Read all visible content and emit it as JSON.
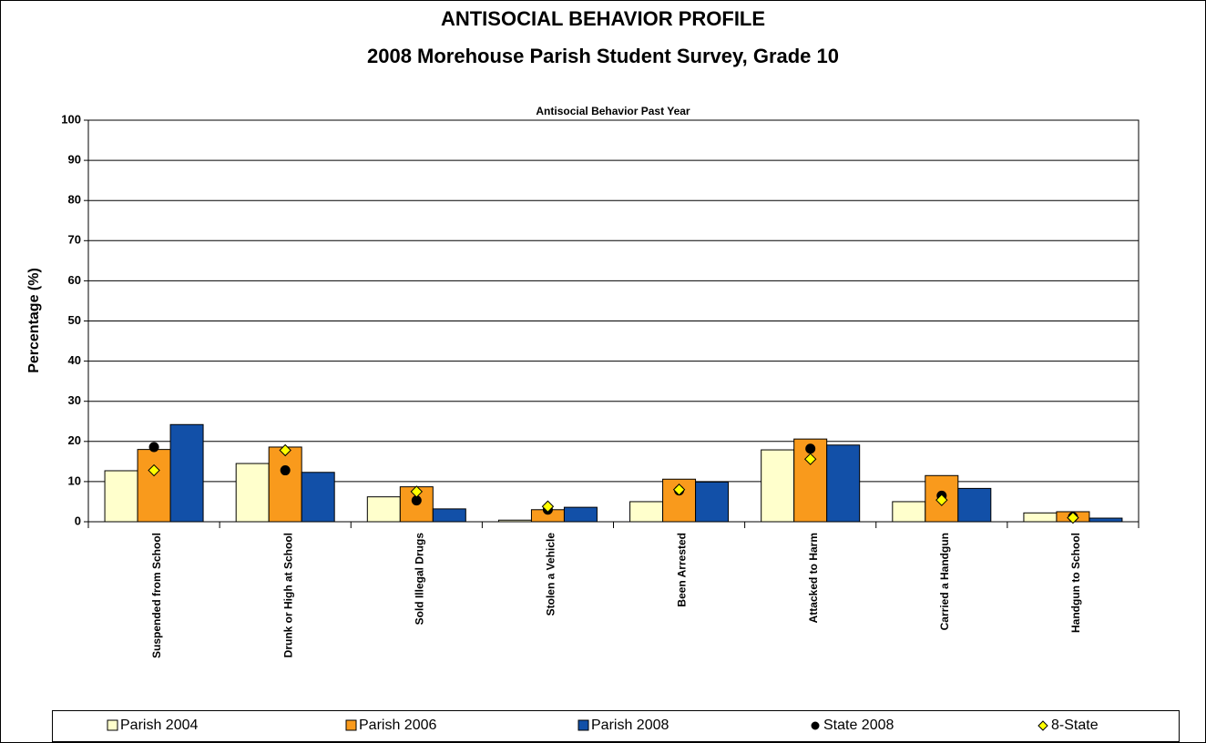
{
  "chart_data": {
    "type": "bar",
    "title": "ANTISOCIAL BEHAVIOR PROFILE",
    "subtitle": "2008 Morehouse Parish Student Survey, Grade 10",
    "plot_title": "Antisocial Behavior Past Year",
    "y_label": "Percentage (%)",
    "categories": [
      "Suspended from School",
      "Drunk or High at School",
      "Sold Illegal Drugs",
      "Stolen a Vehicle",
      "Been Arrested",
      "Attacked to Harm",
      "Carried a Handgun",
      "Handgun to School"
    ],
    "series": [
      {
        "name": "Parish 2004",
        "type": "bar",
        "color": "#ffffcc",
        "values": [
          12.7,
          14.5,
          6.2,
          0.4,
          5.0,
          17.9,
          5.0,
          2.2
        ]
      },
      {
        "name": "Parish 2006",
        "type": "bar",
        "color": "#f99a1c",
        "values": [
          18.0,
          18.6,
          8.7,
          3.0,
          10.6,
          20.6,
          11.5,
          2.5
        ]
      },
      {
        "name": "Parish 2008",
        "type": "bar",
        "color": "#1250a8",
        "values": [
          24.2,
          12.3,
          3.2,
          3.6,
          9.9,
          19.1,
          8.3,
          0.9
        ]
      },
      {
        "name": "State 2008",
        "type": "scatter",
        "marker": "circle",
        "color": "#000000",
        "values": [
          18.6,
          12.8,
          5.3,
          3.0,
          7.8,
          18.2,
          6.5,
          1.2
        ]
      },
      {
        "name": "8-State",
        "type": "scatter",
        "marker": "diamond",
        "color": "#ffff00",
        "values": [
          12.8,
          17.8,
          7.5,
          3.8,
          8.0,
          15.6,
          5.4,
          1.0
        ]
      }
    ],
    "ylim": [
      0,
      100
    ],
    "yticks": [
      0,
      10,
      20,
      30,
      40,
      50,
      60,
      70,
      80,
      90,
      100
    ],
    "grid": true,
    "legend": "bottom"
  }
}
